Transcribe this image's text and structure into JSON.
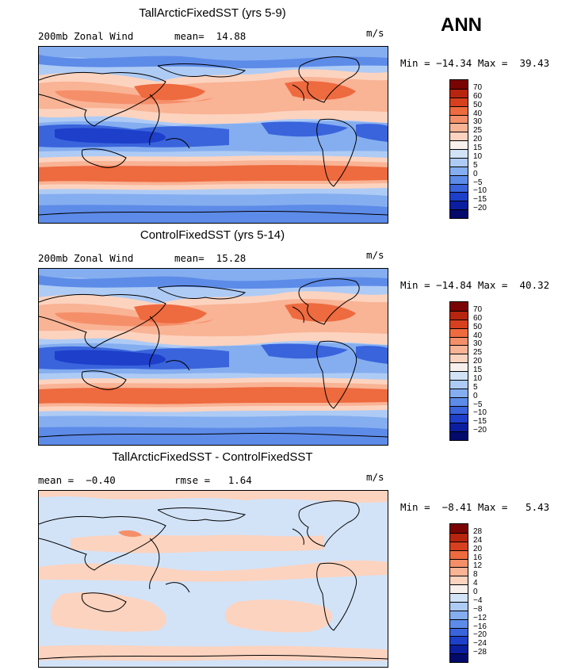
{
  "season": "ANN",
  "panels": [
    {
      "title": "TallArcticFixedSST (yrs 5-9)",
      "left_label": "200mb Zonal Wind",
      "stat1": "mean=  14.88",
      "unit": "m/s",
      "minmax": "Min = −14.34 Max =  39.43",
      "ticks": [
        "70",
        "60",
        "50",
        "40",
        "30",
        "25",
        "20",
        "15",
        "10",
        "5",
        "0",
        "−5",
        "−10",
        "−15",
        "−20"
      ],
      "colors": [
        "#7a0403",
        "#b8250e",
        "#d7401e",
        "#ee6a3f",
        "#f58f6a",
        "#f9b395",
        "#fcd3bf",
        "#f7f0ec",
        "#d2e3f8",
        "#aecbf5",
        "#85aef0",
        "#5d8be8",
        "#3a64dc",
        "#1d3fca",
        "#0b1ea0",
        "#030a6b"
      ]
    },
    {
      "title": "ControlFixedSST (yrs 5-14)",
      "left_label": "200mb Zonal Wind",
      "stat1": "mean=  15.28",
      "unit": "m/s",
      "minmax": "Min = −14.84 Max =  40.32",
      "ticks": [
        "70",
        "60",
        "50",
        "40",
        "30",
        "25",
        "20",
        "15",
        "10",
        "5",
        "0",
        "−5",
        "−10",
        "−15",
        "−20"
      ],
      "colors": [
        "#7a0403",
        "#b8250e",
        "#d7401e",
        "#ee6a3f",
        "#f58f6a",
        "#f9b395",
        "#fcd3bf",
        "#f7f0ec",
        "#d2e3f8",
        "#aecbf5",
        "#85aef0",
        "#5d8be8",
        "#3a64dc",
        "#1d3fca",
        "#0b1ea0",
        "#030a6b"
      ]
    },
    {
      "title": "TallArcticFixedSST - ControlFixedSST",
      "left_label": "mean =  −0.40",
      "stat1": "rmse =   1.64",
      "unit": "m/s",
      "minmax": "Min =  −8.41 Max =   5.43",
      "ticks": [
        "28",
        "24",
        "20",
        "16",
        "12",
        "8",
        "4",
        "0",
        "−4",
        "−8",
        "−12",
        "−16",
        "−20",
        "−24",
        "−28"
      ],
      "colors": [
        "#7a0403",
        "#b8250e",
        "#d7401e",
        "#ee6a3f",
        "#f58f6a",
        "#f9b395",
        "#fcd3bf",
        "#f7f0ec",
        "#d2e3f8",
        "#aecbf5",
        "#85aef0",
        "#5d8be8",
        "#3a64dc",
        "#1d3fca",
        "#0b1ea0",
        "#030a6b"
      ]
    }
  ]
}
